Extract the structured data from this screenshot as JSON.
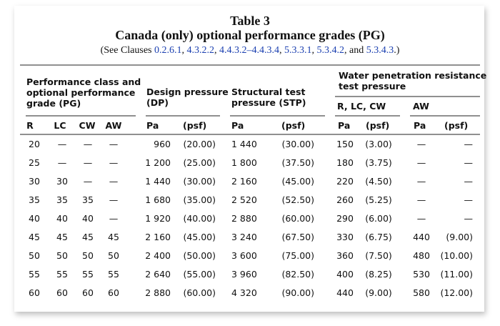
{
  "title": "Table 3",
  "subtitle": "Canada (only) optional performance grades (PG)",
  "reference": {
    "text_before": "(See Clauses",
    "links": [
      "0.2.6.1",
      "4.3.2.2",
      "4.4.3.2–4.4.3.4",
      "5.3.3.1",
      "5.3.4.2",
      "5.3.4.3"
    ],
    "separator": ",",
    "conjunction": "and",
    "text_after": ".)"
  },
  "table": {
    "group_headers": [
      {
        "lines": [
          "Performance class and",
          "optional performance",
          "grade (PG)"
        ]
      },
      {
        "lines": [
          "Design pressure",
          "(DP)"
        ]
      },
      {
        "lines": [
          "Structural test",
          "pressure (STP)"
        ]
      },
      {
        "lines": [
          "Water penetration resistance",
          "test pressure"
        ]
      }
    ],
    "sub_headers": [
      "R, LC, CW",
      "AW"
    ],
    "columns": [
      "R",
      "LC",
      "CW",
      "AW",
      "Pa",
      "(psf)",
      "Pa",
      "(psf)",
      "Pa",
      "(psf)",
      "Pa",
      "(psf)"
    ],
    "rows": [
      [
        "20",
        "—",
        "—",
        "—",
        "960",
        "(20.00)",
        "1 440",
        "(30.00)",
        "150",
        "(3.00)",
        "—",
        "—"
      ],
      [
        "25",
        "—",
        "—",
        "—",
        "1 200",
        "(25.00)",
        "1 800",
        "(37.50)",
        "180",
        "(3.75)",
        "—",
        "—"
      ],
      [
        "30",
        "30",
        "—",
        "—",
        "1 440",
        "(30.00)",
        "2 160",
        "(45.00)",
        "220",
        "(4.50)",
        "—",
        "—"
      ],
      [
        "35",
        "35",
        "35",
        "—",
        "1 680",
        "(35.00)",
        "2 520",
        "(52.50)",
        "260",
        "(5.25)",
        "—",
        "—"
      ],
      [
        "40",
        "40",
        "40",
        "—",
        "1 920",
        "(40.00)",
        "2 880",
        "(60.00)",
        "290",
        "(6.00)",
        "—",
        "—"
      ],
      [
        "45",
        "45",
        "45",
        "45",
        "2 160",
        "(45.00)",
        "3 240",
        "(67.50)",
        "330",
        "(6.75)",
        "440",
        "(9.00)"
      ],
      [
        "50",
        "50",
        "50",
        "50",
        "2 400",
        "(50.00)",
        "3 600",
        "(75.00)",
        "360",
        "(7.50)",
        "480",
        "(10.00)"
      ],
      [
        "55",
        "55",
        "55",
        "55",
        "2 640",
        "(55.00)",
        "3 960",
        "(82.50)",
        "400",
        "(8.25)",
        "530",
        "(11.00)"
      ],
      [
        "60",
        "60",
        "60",
        "60",
        "2 880",
        "(60.00)",
        "4 320",
        "(90.00)",
        "440",
        "(9.00)",
        "580",
        "(12.00)"
      ]
    ]
  }
}
